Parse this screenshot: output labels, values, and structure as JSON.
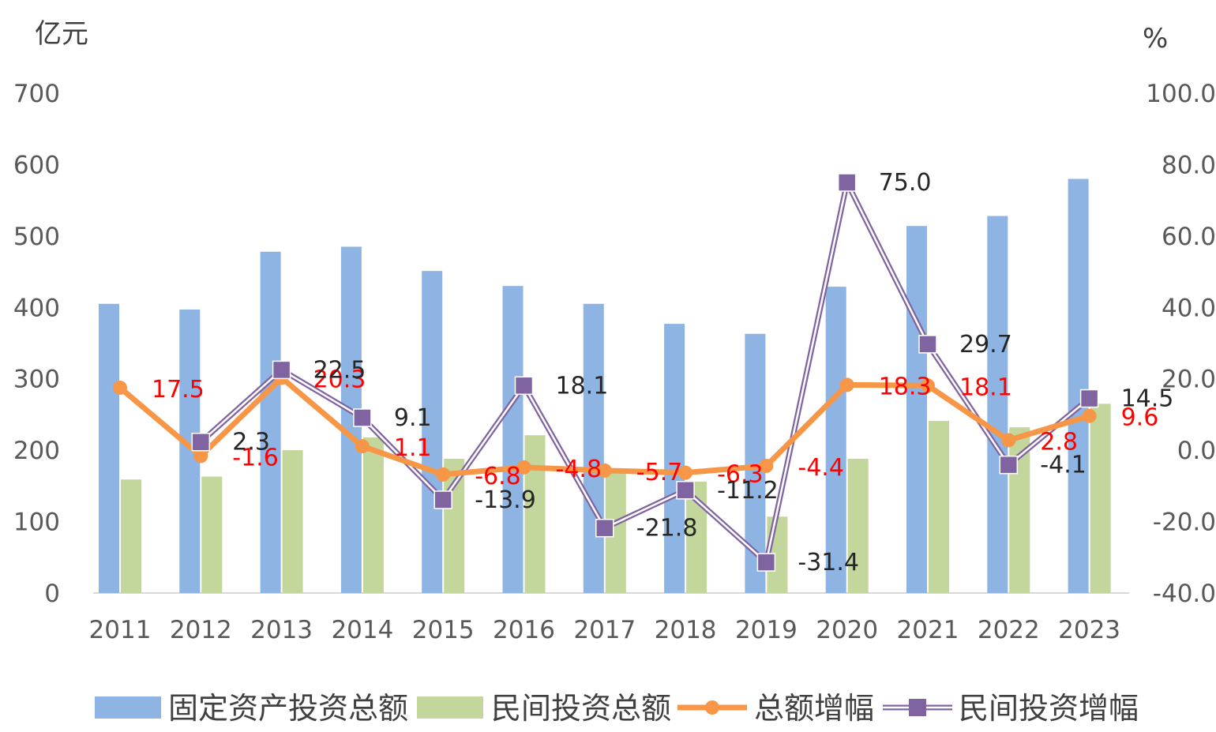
{
  "chart_data": {
    "type": "bar",
    "categories": [
      "2011",
      "2012",
      "2013",
      "2014",
      "2015",
      "2016",
      "2017",
      "2018",
      "2019",
      "2020",
      "2021",
      "2022",
      "2023"
    ],
    "y_left": {
      "unit": "亿元",
      "ylim": [
        0,
        700
      ],
      "ticks": [
        "0",
        "100",
        "200",
        "300",
        "400",
        "500",
        "600",
        "700"
      ]
    },
    "y_right": {
      "unit": "%",
      "ylim": [
        -40,
        100
      ],
      "ticks": [
        "-40.0",
        "-20.0",
        "0.0",
        "20.0",
        "40.0",
        "60.0",
        "80.0",
        "100.0"
      ]
    },
    "grid": false,
    "legend_position": "bottom",
    "series": [
      {
        "name": "固定资产投资总额",
        "type": "bar",
        "axis": "left",
        "color": "#8eb4e3",
        "values": [
          405,
          397,
          478,
          485,
          451,
          430,
          405,
          377,
          363,
          429,
          514,
          528,
          580
        ]
      },
      {
        "name": "民间投资总额",
        "type": "bar",
        "axis": "left",
        "color": "#c3d69b",
        "values": [
          159,
          163,
          200,
          218,
          188,
          221,
          168,
          156,
          107,
          188,
          241,
          232,
          265
        ]
      },
      {
        "name": "总额增幅",
        "type": "line",
        "axis": "right",
        "color": "#f79646",
        "values": [
          17.5,
          -1.6,
          20.3,
          1.1,
          -6.8,
          -4.8,
          -5.7,
          -6.3,
          -4.4,
          18.3,
          18.1,
          2.8,
          9.6
        ],
        "labels": [
          "17.5",
          "-1.6",
          "20.3",
          "1.1",
          "-6.8",
          "-4.8",
          "-5.7",
          "-6.3",
          "-4.4",
          "18.3",
          "18.1",
          "2.8",
          "9.6"
        ]
      },
      {
        "name": "民间投资增幅",
        "type": "line",
        "axis": "right",
        "color": "#8064a2",
        "values": [
          null,
          2.3,
          22.5,
          9.1,
          -13.9,
          18.1,
          -21.8,
          -11.2,
          -31.4,
          75.0,
          29.7,
          -4.1,
          14.5
        ],
        "labels": [
          null,
          "2.3",
          "22.5",
          "9.1",
          "-13.9",
          "18.1",
          "-21.8",
          "-11.2",
          "-31.4",
          "75.0",
          "29.7",
          "-4.1",
          "14.5"
        ]
      }
    ]
  }
}
